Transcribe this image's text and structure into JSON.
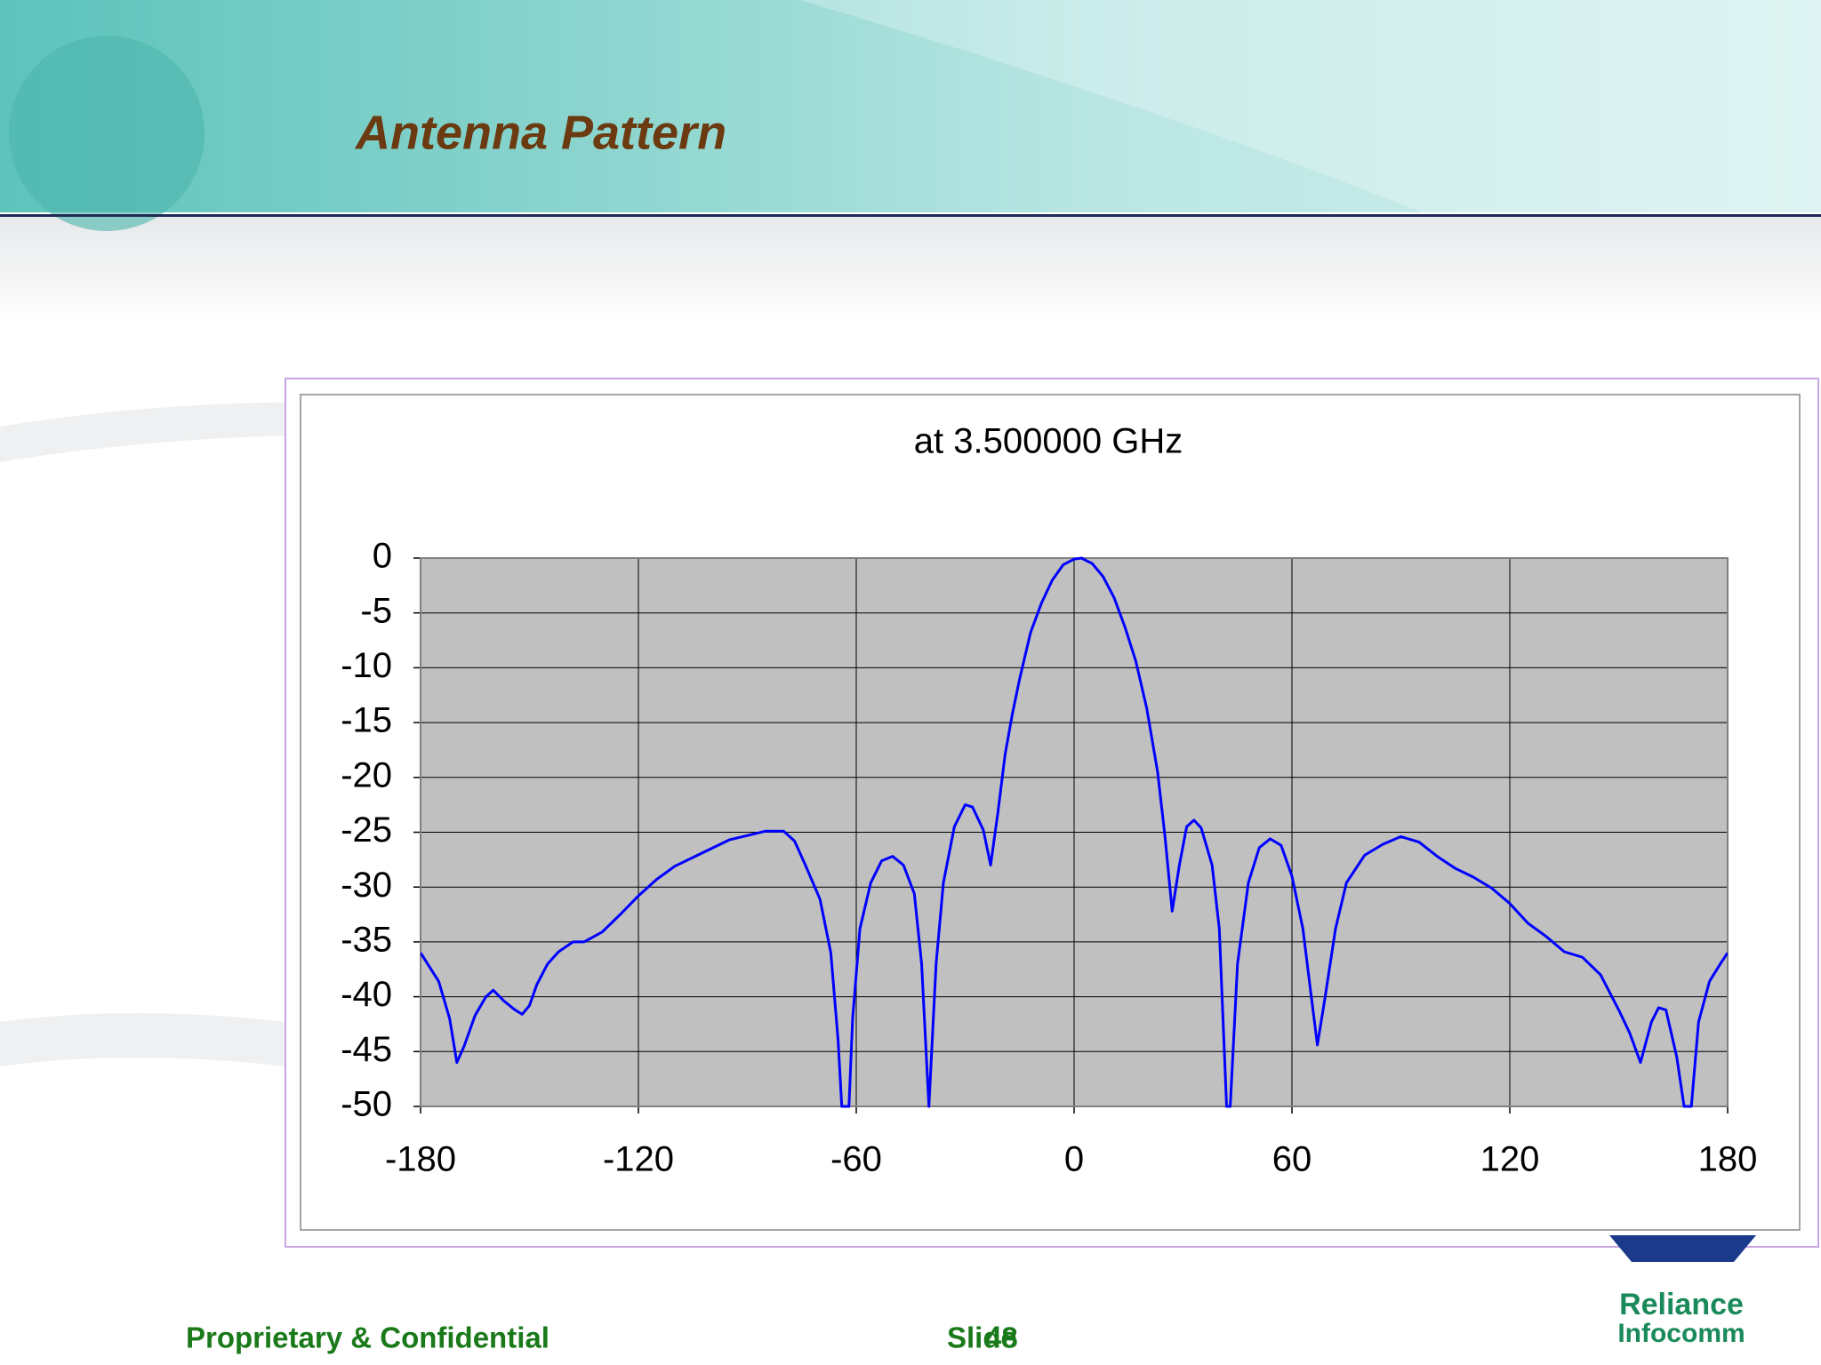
{
  "slide": {
    "title": "Antenna Pattern",
    "footer": "Proprietary & Confidential",
    "slide_label": "Slide",
    "slide_number": "48",
    "logo_line1": "Reliance",
    "logo_line2": "Infocomm"
  },
  "chart_data": {
    "type": "line",
    "title": "at 3.500000 GHz",
    "color": "#0000ff",
    "plot_background": "#c0c0c0",
    "grid": true,
    "x": [
      -180,
      -175,
      -172,
      -170,
      -168,
      -165,
      -162,
      -160,
      -157,
      -154,
      -152,
      -150,
      -148,
      -145,
      -142,
      -138,
      -135,
      -130,
      -125,
      -120,
      -115,
      -110,
      -105,
      -100,
      -95,
      -90,
      -85,
      -80,
      -77,
      -74,
      -70,
      -67,
      -65,
      -64,
      -62,
      -61,
      -59,
      -56,
      -53,
      -50,
      -47,
      -44,
      -42,
      -40,
      -38,
      -36,
      -33,
      -30,
      -28,
      -25,
      -23,
      -21,
      -19,
      -17,
      -15,
      -12,
      -9,
      -6,
      -3,
      0,
      2,
      5,
      8,
      11,
      14,
      17,
      20,
      23,
      25,
      27,
      29,
      31,
      33,
      35,
      38,
      40,
      42,
      43,
      45,
      48,
      51,
      54,
      57,
      60,
      63,
      65,
      67,
      69,
      72,
      75,
      80,
      85,
      90,
      95,
      100,
      105,
      110,
      115,
      120,
      125,
      130,
      135,
      140,
      145,
      150,
      153,
      156,
      159,
      161,
      163,
      166,
      168,
      170,
      172,
      175,
      178,
      180
    ],
    "values": [
      -36,
      -38.6,
      -42,
      -46,
      -44.5,
      -41.7,
      -40,
      -39.4,
      -40.4,
      -41.2,
      -41.6,
      -40.8,
      -38.9,
      -37,
      -35.9,
      -35,
      -35,
      -34.1,
      -32.5,
      -30.8,
      -29.3,
      -28.1,
      -27.3,
      -26.5,
      -25.7,
      -25.3,
      -24.9,
      -24.9,
      -25.8,
      -28,
      -31.1,
      -36,
      -44,
      -50,
      -50,
      -42,
      -33.8,
      -29.6,
      -27.6,
      -27.2,
      -28,
      -30.6,
      -37,
      -50,
      -37,
      -29.6,
      -24.5,
      -22.5,
      -22.7,
      -24.8,
      -28,
      -23.2,
      -17.9,
      -14.2,
      -11,
      -6.8,
      -4.1,
      -2,
      -0.6,
      -0.1,
      0,
      -0.5,
      -1.7,
      -3.6,
      -6.3,
      -9.4,
      -13.7,
      -19.5,
      -25.3,
      -32.2,
      -28,
      -24.5,
      -23.9,
      -24.6,
      -28,
      -33.8,
      -50,
      -50,
      -37,
      -29.6,
      -26.4,
      -25.6,
      -26.2,
      -29,
      -33.8,
      -39.1,
      -44.4,
      -40.3,
      -33.8,
      -29.6,
      -27.1,
      -26.1,
      -25.4,
      -25.9,
      -27.2,
      -28.3,
      -29.1,
      -30.1,
      -31.5,
      -33.3,
      -34.5,
      -35.9,
      -36.4,
      -38,
      -41.2,
      -43.3,
      -46,
      -42.3,
      -41,
      -41.2,
      -45.5,
      -50,
      -50,
      -42.3,
      -38.6,
      -37,
      -36
    ],
    "xlim": [
      -180,
      180
    ],
    "xticks": [
      -180,
      -120,
      -60,
      0,
      60,
      120,
      180
    ],
    "ylim": [
      -50,
      0
    ],
    "yticks": [
      0,
      -5,
      -10,
      -15,
      -20,
      -25,
      -30,
      -35,
      -40,
      -45,
      -50
    ]
  }
}
